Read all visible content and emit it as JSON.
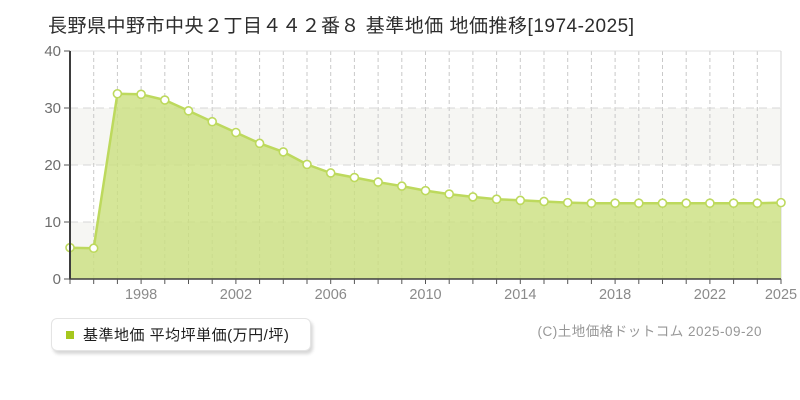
{
  "title": "長野県中野市中央２丁目４４２番８ 基準地価 地価推移[1974-2025]",
  "legend": {
    "marker_color": "#a6c71d",
    "label": "基準地価 平均坪単価(万円/坪)"
  },
  "copyright": "(C)土地価格ドットコム 2025-09-20",
  "chart_data": {
    "type": "area",
    "title": "長野県中野市中央２丁目４４２番８ 基準地価 地価推移[1974-2025]",
    "series_name": "基準地価 平均坪単価(万円/坪)",
    "xlabel": "",
    "ylabel": "平均坪単価(万円/坪)",
    "x": [
      1995,
      1996,
      1997,
      1998,
      1999,
      2000,
      2001,
      2002,
      2003,
      2004,
      2005,
      2006,
      2007,
      2008,
      2009,
      2010,
      2011,
      2012,
      2013,
      2014,
      2015,
      2016,
      2017,
      2018,
      2019,
      2020,
      2021,
      2022,
      2023,
      2024,
      2025
    ],
    "values": [
      5.5,
      5.4,
      32.5,
      32.4,
      31.4,
      29.5,
      27.6,
      25.7,
      23.8,
      22.3,
      20.1,
      18.6,
      17.8,
      17.0,
      16.3,
      15.5,
      14.9,
      14.4,
      14.0,
      13.8,
      13.6,
      13.4,
      13.3,
      13.3,
      13.3,
      13.3,
      13.3,
      13.3,
      13.3,
      13.3,
      13.4
    ],
    "xlim": [
      1995,
      2025
    ],
    "ylim": [
      0,
      40
    ],
    "y_ticks": [
      0,
      10,
      20,
      30,
      40
    ],
    "x_tick_labels": [
      1998,
      2002,
      2006,
      2010,
      2014,
      2018,
      2022,
      2025
    ],
    "grid": "dashed",
    "legend_position": "bottom-left",
    "colors": {
      "line": "#bdd95d",
      "fill": "#cbe07e",
      "fill_opacity": 0.8,
      "marker_fill": "#ffffff",
      "band_gray": "#f6f6f3",
      "band_white": "#ffffff"
    }
  }
}
